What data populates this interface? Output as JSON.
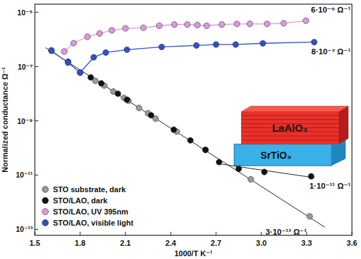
{
  "chart_data": {
    "type": "scatter",
    "x_label": "1000/T  K⁻¹",
    "y_label": "Normalized conductance Ω⁻¹",
    "log": "y",
    "grid": false,
    "legend": "lower left",
    "xlim": [
      1.5,
      3.6
    ],
    "ylim": [
      6e-14,
      2e-05
    ],
    "xticks": [
      1.5,
      1.8,
      2.1,
      2.4,
      2.7,
      {
        "value": 3,
        "label": "3.0"
      },
      3.3,
      3.6
    ],
    "yticks": [
      {
        "value": 1e-13,
        "label": "10⁻¹³"
      },
      {
        "value": 1e-11,
        "label": "10⁻¹¹"
      },
      {
        "value": 1e-09,
        "label": "10⁻⁹"
      },
      {
        "value": 1e-07,
        "label": "10⁻⁷"
      },
      {
        "value": 1e-05,
        "label": "10⁻⁵"
      }
    ],
    "series": [
      {
        "name": "STO substrate, dark",
        "color": "#9a9a9a",
        "marker": "circle",
        "line_style": "none",
        "x": [
          1.61,
          1.9,
          1.96,
          2.02,
          2.09,
          2.12,
          2.19,
          2.25,
          2.3,
          2.44,
          2.63,
          2.93,
          3.32
        ],
        "values": [
          4e-07,
          3e-08,
          2e-08,
          1.2e-08,
          7e-09,
          5.5e-09,
          3e-09,
          1.9e-09,
          1.2e-09,
          4e-10,
          8.5e-11,
          7e-12,
          3e-13
        ]
      },
      {
        "name": "STO/LAO, dark",
        "color": "#111111",
        "marker": "circle",
        "line_style": "none",
        "x": [
          1.72,
          1.8,
          1.87,
          1.94,
          2.05,
          2.11,
          2.27,
          2.42,
          2.53,
          2.63,
          2.72,
          2.85,
          3.02,
          3.33
        ],
        "values": [
          1.5e-07,
          6e-08,
          4e-08,
          2.4e-08,
          1e-08,
          6e-09,
          1.6e-09,
          4.7e-10,
          1.9e-10,
          8.5e-11,
          3e-11,
          1.7e-11,
          1.3e-11,
          9e-12
        ]
      },
      {
        "name": "STO/LAO, UV 395nm",
        "color": "#dd99dd",
        "marker": "circle",
        "line_style": "solid",
        "x": [
          1.695,
          1.757,
          1.848,
          1.929,
          2.01,
          2.1,
          2.219,
          2.324,
          2.424,
          2.51,
          2.576,
          2.638,
          2.738,
          2.838,
          2.924,
          3.038,
          3.148,
          3.295
        ],
        "values": [
          3.6e-07,
          7.3e-07,
          1.26e-06,
          1.66e-06,
          2.17e-06,
          2.56e-06,
          2.7e-06,
          3.2e-06,
          3.55e-06,
          3.55e-06,
          3.4e-06,
          3.2e-06,
          3.55e-06,
          3.75e-06,
          3.75e-06,
          3.75e-06,
          3.96e-06,
          4.9e-06
        ]
      },
      {
        "name": "STO/LAO, visible light",
        "color": "#3050c8",
        "marker": "circle",
        "line_style": "solid",
        "x": [
          1.61,
          1.72,
          1.8,
          1.89,
          1.97,
          2.11,
          2.34,
          2.57,
          2.7,
          2.83,
          3.01,
          3.35
        ],
        "values": [
          3.8e-07,
          1.4e-07,
          6e-08,
          2.2e-07,
          3.3e-07,
          4.2e-07,
          5.3e-07,
          6e-07,
          6.5e-07,
          6.5e-07,
          7.2e-07,
          8e-07
        ]
      }
    ],
    "fits": [
      {
        "x": [
          1.57,
          3.42
        ],
        "values": [
          5e-07,
          1.2e-13
        ]
      },
      {
        "x": [
          2.72,
          3.35
        ],
        "values": [
          2.6e-11,
          8e-12
        ]
      }
    ],
    "annotations": [
      {
        "text": "6·10⁻⁶ Ω⁻¹",
        "value": 6e-06
      },
      {
        "text": "8·10⁻⁷ Ω⁻¹",
        "value": 8e-07
      },
      {
        "text": "1·10⁻¹¹ Ω⁻¹",
        "value": 1e-11
      },
      {
        "text": "3·10⁻¹³ Ω⁻¹",
        "value": 3e-13
      }
    ],
    "inset": {
      "top_label": "LaAlO₃",
      "bottom_label": "SrTiO₃"
    }
  }
}
